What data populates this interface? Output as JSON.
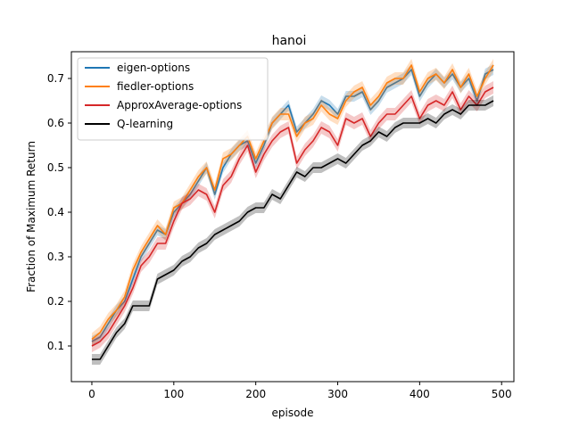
{
  "chart_data": {
    "type": "line",
    "title": "hanoi",
    "xlabel": "episode",
    "ylabel": "Fraction of Maximum Return",
    "xlim": [
      -25,
      515
    ],
    "ylim": [
      0.02,
      0.76
    ],
    "xticks": [
      0,
      100,
      200,
      300,
      400,
      500
    ],
    "yticks": [
      0.1,
      0.2,
      0.3,
      0.4,
      0.5,
      0.6,
      0.7
    ],
    "grid": false,
    "legend": {
      "position": "top-left",
      "entries": [
        "eigen-options",
        "fiedler-options",
        "ApproxAverage-options",
        "Q-learning"
      ]
    },
    "series": [
      {
        "name": "eigen-options",
        "color": "#1f77b4",
        "band": 0.012,
        "x": [
          0,
          10,
          20,
          30,
          40,
          50,
          60,
          70,
          80,
          90,
          100,
          110,
          120,
          130,
          140,
          150,
          160,
          170,
          180,
          190,
          200,
          210,
          220,
          230,
          240,
          250,
          260,
          270,
          280,
          290,
          300,
          310,
          320,
          330,
          340,
          350,
          360,
          370,
          380,
          390,
          400,
          410,
          420,
          430,
          440,
          450,
          460,
          470,
          480,
          490
        ],
        "y": [
          0.11,
          0.12,
          0.15,
          0.18,
          0.2,
          0.25,
          0.3,
          0.33,
          0.36,
          0.35,
          0.4,
          0.42,
          0.44,
          0.47,
          0.5,
          0.44,
          0.5,
          0.53,
          0.55,
          0.56,
          0.51,
          0.55,
          0.6,
          0.62,
          0.64,
          0.58,
          0.6,
          0.62,
          0.65,
          0.64,
          0.62,
          0.66,
          0.66,
          0.67,
          0.63,
          0.65,
          0.68,
          0.69,
          0.7,
          0.72,
          0.66,
          0.69,
          0.71,
          0.69,
          0.71,
          0.68,
          0.7,
          0.65,
          0.71,
          0.72
        ]
      },
      {
        "name": "fiedler-options",
        "color": "#ff7f0e",
        "band": 0.014,
        "x": [
          0,
          10,
          20,
          30,
          40,
          50,
          60,
          70,
          80,
          90,
          100,
          110,
          120,
          130,
          140,
          150,
          160,
          170,
          180,
          190,
          200,
          210,
          220,
          230,
          240,
          250,
          260,
          270,
          280,
          290,
          300,
          310,
          320,
          330,
          340,
          350,
          360,
          370,
          380,
          390,
          400,
          410,
          420,
          430,
          440,
          450,
          460,
          470,
          480,
          490
        ],
        "y": [
          0.115,
          0.13,
          0.16,
          0.18,
          0.21,
          0.27,
          0.31,
          0.34,
          0.37,
          0.35,
          0.41,
          0.42,
          0.45,
          0.48,
          0.5,
          0.45,
          0.52,
          0.53,
          0.55,
          0.57,
          0.52,
          0.56,
          0.6,
          0.62,
          0.62,
          0.57,
          0.6,
          0.61,
          0.64,
          0.62,
          0.61,
          0.65,
          0.67,
          0.68,
          0.64,
          0.66,
          0.69,
          0.7,
          0.7,
          0.73,
          0.67,
          0.7,
          0.71,
          0.69,
          0.72,
          0.68,
          0.71,
          0.66,
          0.7,
          0.73
        ]
      },
      {
        "name": "ApproxAverage-options",
        "color": "#d62728",
        "band": 0.014,
        "x": [
          0,
          10,
          20,
          30,
          40,
          50,
          60,
          70,
          80,
          90,
          100,
          110,
          120,
          130,
          140,
          150,
          160,
          170,
          180,
          190,
          200,
          210,
          220,
          230,
          240,
          250,
          260,
          270,
          280,
          290,
          300,
          310,
          320,
          330,
          340,
          350,
          360,
          370,
          380,
          390,
          400,
          410,
          420,
          430,
          440,
          450,
          460,
          470,
          480,
          490
        ],
        "y": [
          0.1,
          0.11,
          0.13,
          0.16,
          0.19,
          0.23,
          0.28,
          0.3,
          0.33,
          0.33,
          0.38,
          0.42,
          0.43,
          0.45,
          0.44,
          0.4,
          0.46,
          0.48,
          0.52,
          0.55,
          0.49,
          0.53,
          0.56,
          0.58,
          0.59,
          0.51,
          0.54,
          0.56,
          0.59,
          0.58,
          0.55,
          0.61,
          0.6,
          0.61,
          0.57,
          0.6,
          0.62,
          0.62,
          0.64,
          0.66,
          0.61,
          0.64,
          0.65,
          0.64,
          0.67,
          0.63,
          0.66,
          0.64,
          0.67,
          0.68
        ]
      },
      {
        "name": "Q-learning",
        "color": "#000000",
        "band": 0.012,
        "x": [
          0,
          10,
          20,
          30,
          40,
          50,
          60,
          70,
          80,
          90,
          100,
          110,
          120,
          130,
          140,
          150,
          160,
          170,
          180,
          190,
          200,
          210,
          220,
          230,
          240,
          250,
          260,
          270,
          280,
          290,
          300,
          310,
          320,
          330,
          340,
          350,
          360,
          370,
          380,
          390,
          400,
          410,
          420,
          430,
          440,
          450,
          460,
          470,
          480,
          490
        ],
        "y": [
          0.07,
          0.07,
          0.1,
          0.13,
          0.15,
          0.19,
          0.19,
          0.19,
          0.25,
          0.26,
          0.27,
          0.29,
          0.3,
          0.32,
          0.33,
          0.35,
          0.36,
          0.37,
          0.38,
          0.4,
          0.41,
          0.41,
          0.44,
          0.43,
          0.46,
          0.49,
          0.48,
          0.5,
          0.5,
          0.51,
          0.52,
          0.51,
          0.53,
          0.55,
          0.56,
          0.58,
          0.57,
          0.59,
          0.6,
          0.6,
          0.6,
          0.61,
          0.6,
          0.62,
          0.63,
          0.62,
          0.64,
          0.64,
          0.64,
          0.65
        ]
      }
    ]
  }
}
